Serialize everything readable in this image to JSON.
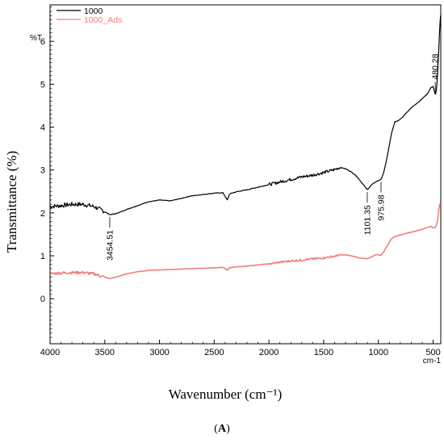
{
  "chart_data": {
    "type": "line",
    "xlabel": "Wavenumber (cm⁻¹)",
    "ylabel": "Transmittance (%)",
    "axis_unit_label": "%T",
    "x_unit_label": "cm-1",
    "panel_label": "(A)",
    "panel_letter": "A",
    "xlim": [
      4000,
      430
    ],
    "ylim": [
      -1.05,
      6.85
    ],
    "x_reversed": true,
    "x_ticks": [
      "4000",
      "3500",
      "3000",
      "2500",
      "2000",
      "1500",
      "1000",
      "500"
    ],
    "y_ticks": [
      "0",
      "1",
      "2",
      "3",
      "4",
      "5",
      "6"
    ],
    "legend_position": "top-left",
    "grid": false,
    "series": [
      {
        "name": "1000",
        "color": "#000000",
        "x": [
          4000,
          3900,
          3800,
          3700,
          3600,
          3500,
          3454.51,
          3400,
          3300,
          3200,
          3100,
          3000,
          2900,
          2800,
          2700,
          2600,
          2500,
          2420,
          2380,
          2360,
          2340,
          2300,
          2200,
          2100,
          2000,
          1900,
          1800,
          1700,
          1600,
          1500,
          1400,
          1350,
          1300,
          1250,
          1200,
          1150,
          1101.35,
          1060,
          1020,
          975.98,
          950,
          920,
          880,
          850,
          820,
          780,
          750,
          700,
          650,
          600,
          550,
          520,
          500,
          480.28,
          470,
          460,
          450,
          440,
          432
        ],
        "y": [
          2.15,
          2.17,
          2.2,
          2.2,
          2.15,
          2.03,
          1.96,
          1.98,
          2.08,
          2.17,
          2.26,
          2.3,
          2.28,
          2.34,
          2.4,
          2.43,
          2.46,
          2.47,
          2.3,
          2.44,
          2.46,
          2.49,
          2.54,
          2.6,
          2.66,
          2.72,
          2.78,
          2.84,
          2.88,
          2.94,
          3.01,
          3.06,
          3.03,
          2.96,
          2.86,
          2.7,
          2.54,
          2.66,
          2.73,
          2.78,
          2.95,
          3.3,
          3.85,
          4.12,
          4.15,
          4.23,
          4.32,
          4.45,
          4.55,
          4.66,
          4.78,
          4.92,
          4.95,
          4.75,
          4.85,
          5.2,
          5.7,
          6.3,
          6.6
        ]
      },
      {
        "name": "1000_Ads",
        "color": "#f07f7f",
        "x": [
          4000,
          3900,
          3800,
          3700,
          3600,
          3500,
          3454.51,
          3400,
          3300,
          3200,
          3100,
          3000,
          2900,
          2800,
          2700,
          2600,
          2500,
          2420,
          2380,
          2360,
          2340,
          2300,
          2200,
          2100,
          2000,
          1900,
          1800,
          1700,
          1600,
          1500,
          1400,
          1350,
          1300,
          1250,
          1200,
          1150,
          1101.35,
          1060,
          1020,
          975.98,
          950,
          920,
          880,
          850,
          820,
          780,
          750,
          700,
          650,
          600,
          550,
          520,
          500,
          480.28,
          470,
          460,
          450,
          440,
          432
        ],
        "y": [
          0.58,
          0.6,
          0.61,
          0.61,
          0.58,
          0.5,
          0.47,
          0.5,
          0.58,
          0.63,
          0.66,
          0.67,
          0.68,
          0.69,
          0.7,
          0.71,
          0.72,
          0.73,
          0.67,
          0.72,
          0.73,
          0.74,
          0.76,
          0.79,
          0.81,
          0.85,
          0.88,
          0.9,
          0.93,
          0.95,
          0.99,
          1.02,
          1.02,
          1.0,
          0.97,
          0.94,
          0.93,
          0.98,
          1.03,
          1.01,
          1.1,
          1.23,
          1.4,
          1.45,
          1.47,
          1.5,
          1.52,
          1.55,
          1.58,
          1.62,
          1.66,
          1.69,
          1.65,
          1.66,
          1.72,
          1.8,
          2.05,
          2.2,
          2.22
        ]
      }
    ],
    "annotations": [
      {
        "label": "3454.51",
        "x": 3454.51,
        "series": 0
      },
      {
        "label": "1101.35",
        "x": 1101.35,
        "series": 0
      },
      {
        "label": "975.98",
        "x": 975.98,
        "series": 0
      },
      {
        "label": "480.28",
        "x": 480.28,
        "series": 0
      }
    ]
  }
}
